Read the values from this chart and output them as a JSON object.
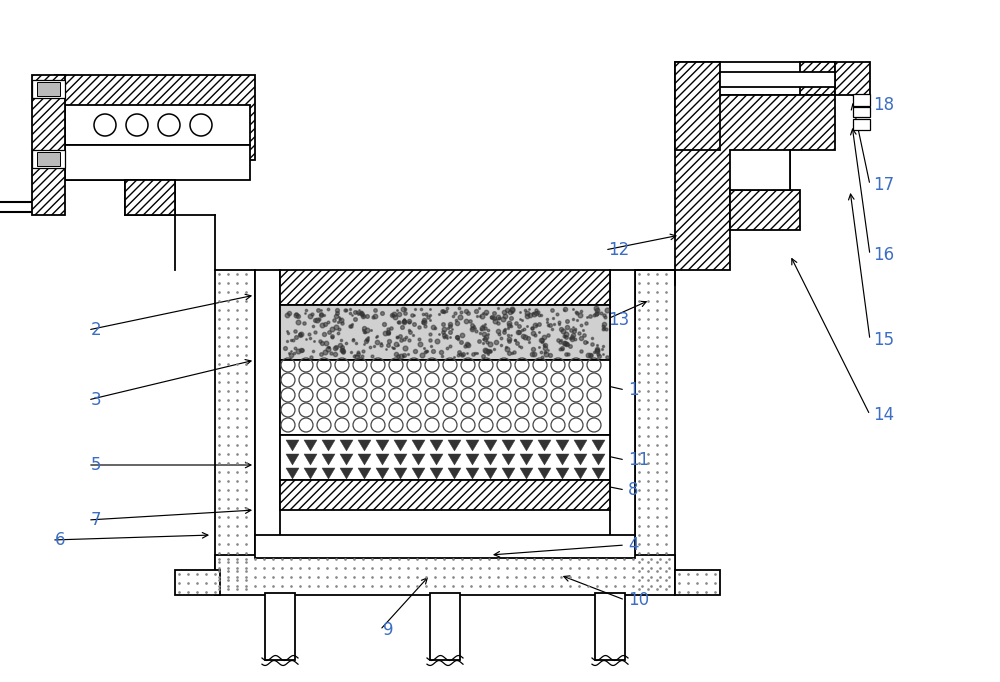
{
  "bg": "#ffffff",
  "lc": "#000000",
  "label_color": "#3c6ec4",
  "fs": 12,
  "lw": 1.3,
  "figsize": [
    10.0,
    6.82
  ],
  "dpi": 100,
  "annotations": [
    [
      "1",
      625,
      390,
      560,
      375
    ],
    [
      "2",
      88,
      330,
      255,
      295
    ],
    [
      "3",
      88,
      400,
      255,
      360
    ],
    [
      "4",
      625,
      545,
      490,
      555
    ],
    [
      "5",
      88,
      465,
      255,
      465
    ],
    [
      "6",
      52,
      540,
      212,
      535
    ],
    [
      "7",
      88,
      520,
      255,
      510
    ],
    [
      "8",
      625,
      490,
      575,
      480
    ],
    [
      "9",
      380,
      630,
      430,
      575
    ],
    [
      "10",
      625,
      600,
      560,
      575
    ],
    [
      "11",
      625,
      460,
      580,
      450
    ],
    [
      "12",
      605,
      250,
      680,
      235
    ],
    [
      "13",
      605,
      320,
      650,
      300
    ],
    [
      "14",
      870,
      415,
      790,
      255
    ],
    [
      "15",
      870,
      340,
      850,
      190
    ],
    [
      "16",
      870,
      255,
      852,
      125
    ],
    [
      "17",
      870,
      185,
      852,
      100
    ],
    [
      "18",
      870,
      105,
      810,
      72
    ]
  ]
}
